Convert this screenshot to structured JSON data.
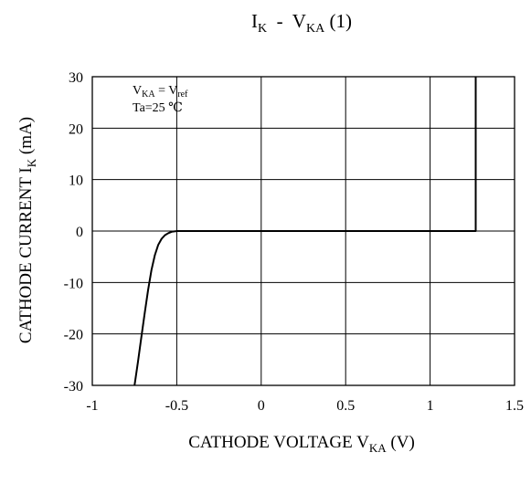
{
  "chart_data": {
    "type": "line",
    "title": {
      "main": "I",
      "main_sub": "K",
      "sep": "  -  ",
      "v": "V",
      "v_sub": "KA",
      "tail": " (1)"
    },
    "xlabel": {
      "main": "CATHODE VOLTAGE V",
      "sub": "KA",
      "tail": " (V)"
    },
    "ylabel": {
      "main": "CATHODE CURRENT I",
      "sub": "K",
      "tail": " (mA)"
    },
    "xlim": [
      -1,
      1.5
    ],
    "ylim": [
      -30,
      30
    ],
    "xticks": [
      -1,
      -0.5,
      0,
      0.5,
      1,
      1.5
    ],
    "yticks": [
      30,
      20,
      10,
      0,
      -10,
      -20,
      -30
    ],
    "grid": true,
    "annotation": {
      "line1": {
        "v": "V",
        "v_sub": "KA",
        "eq": " = V",
        "ref_sub": "ref"
      },
      "line2": "Ta=25 ℃"
    },
    "series": [
      {
        "color": "#000000",
        "x": [
          -0.75,
          -0.73,
          -0.71,
          -0.69,
          -0.67,
          -0.65,
          -0.63,
          -0.61,
          -0.59,
          -0.57,
          -0.55,
          -0.53,
          -0.51,
          -0.5,
          1.27,
          1.27
        ],
        "y": [
          -30,
          -25.5,
          -20.7,
          -16.0,
          -11.5,
          -7.6,
          -4.7,
          -2.7,
          -1.5,
          -0.8,
          -0.4,
          -0.15,
          -0.05,
          0,
          0,
          30
        ]
      }
    ]
  }
}
